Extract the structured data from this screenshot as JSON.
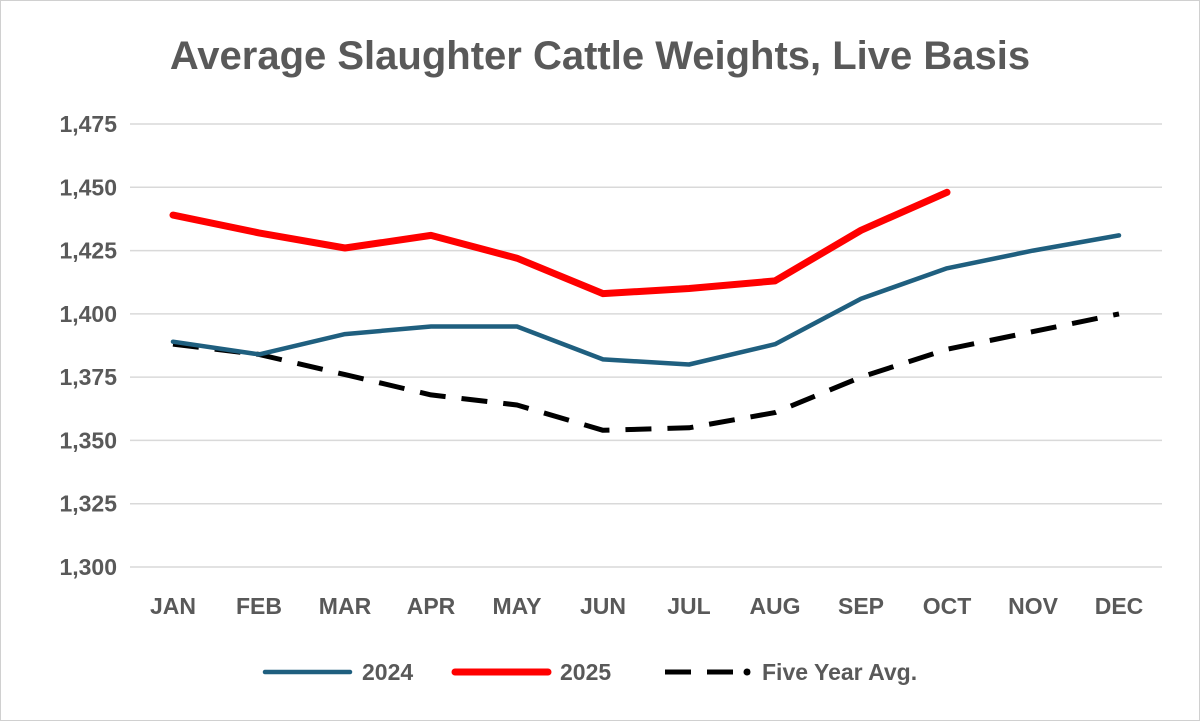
{
  "chart_data": {
    "type": "line",
    "title": "Average Slaughter Cattle Weights, Live Basis",
    "xlabel": "",
    "ylabel": "",
    "ylim": [
      1300,
      1475
    ],
    "yticks": [
      "1,300",
      "1,325",
      "1,350",
      "1,375",
      "1,400",
      "1,425",
      "1,450",
      "1,475"
    ],
    "ytick_values": [
      1300,
      1325,
      1350,
      1375,
      1400,
      1425,
      1450,
      1475
    ],
    "grid": true,
    "legend_position": "bottom",
    "categories": [
      "JAN",
      "FEB",
      "MAR",
      "APR",
      "MAY",
      "JUN",
      "JUL",
      "AUG",
      "SEP",
      "OCT",
      "NOV",
      "DEC"
    ],
    "series": [
      {
        "name": "2024",
        "color": "#1f5f7f",
        "style": "solid",
        "values": [
          1389,
          1384,
          1392,
          1395,
          1395,
          1382,
          1380,
          1388,
          1406,
          1418,
          1425,
          1431
        ]
      },
      {
        "name": "2025",
        "color": "#ff0000",
        "style": "solid",
        "values": [
          1439,
          1432,
          1426,
          1431,
          1422,
          1408,
          1410,
          1413,
          1433,
          1448,
          null,
          null
        ]
      },
      {
        "name": "Five Year Avg.",
        "color": "#000000",
        "style": "dashed",
        "values": [
          1388,
          1384,
          1376,
          1368,
          1364,
          1354,
          1355,
          1361,
          1375,
          1386,
          1393,
          1400
        ]
      }
    ]
  }
}
